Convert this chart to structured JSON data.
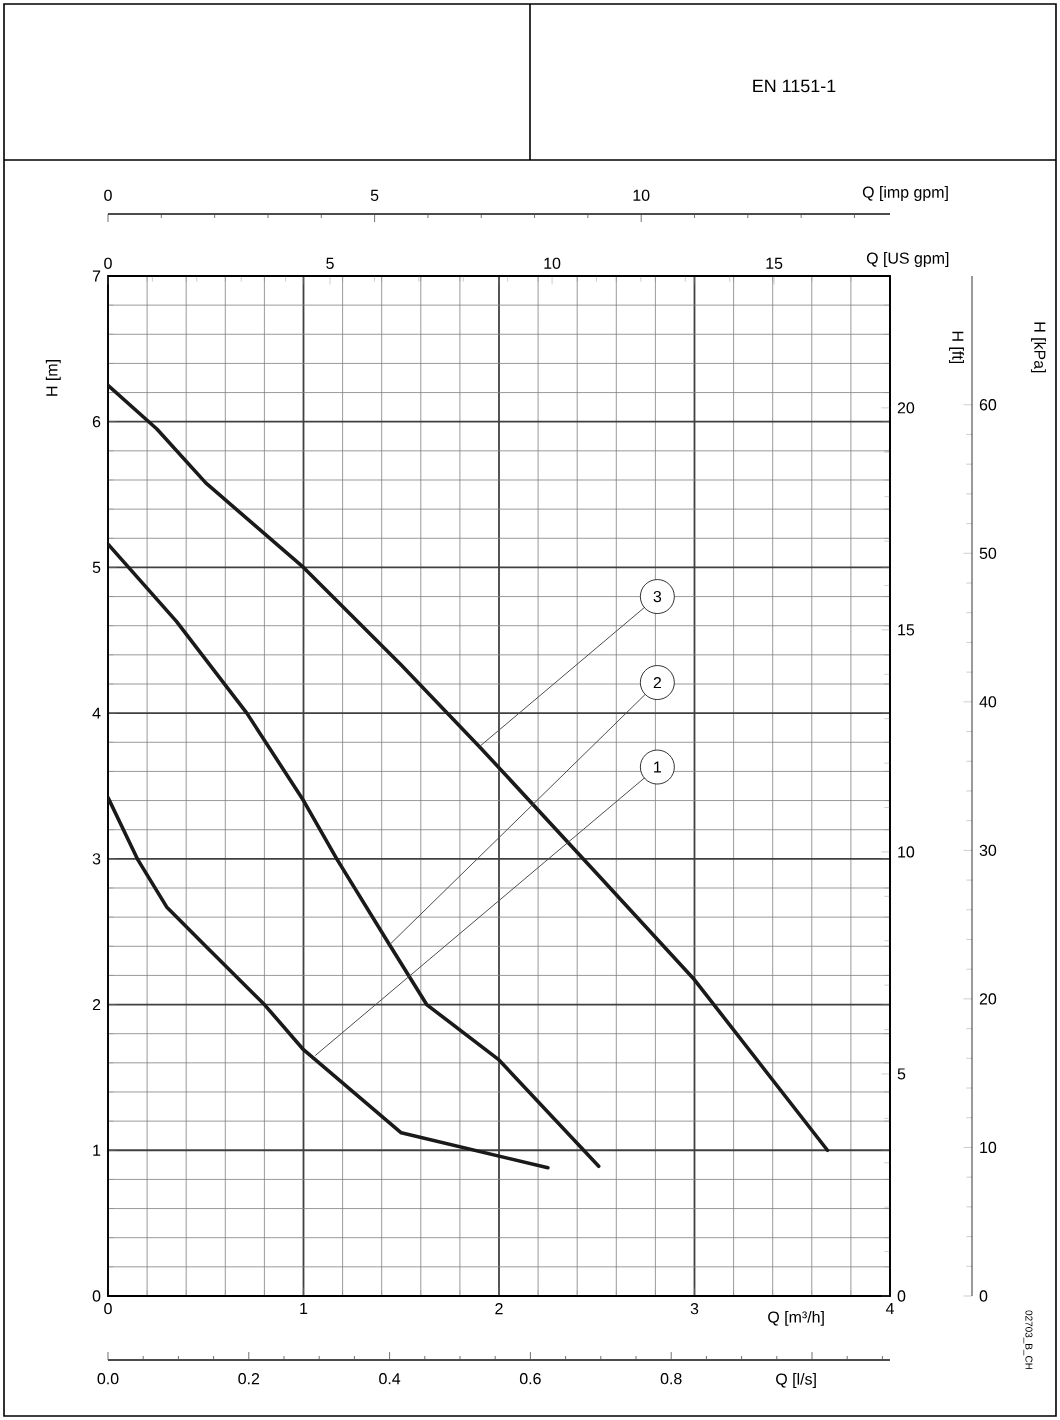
{
  "chart_data": {
    "type": "line",
    "xlabel": "Q [m³/h]",
    "ylabel": "H [m]",
    "y2label": "H [ft]",
    "y3label": "H [kPa]",
    "x2label": "Q [US gpm]",
    "xlim": [
      0,
      4
    ],
    "xticks": [
      0,
      1,
      2,
      3,
      4
    ],
    "ylim": [
      0,
      7
    ],
    "yticks": [
      0,
      1,
      2,
      3,
      4,
      5,
      6,
      7
    ],
    "y2lim": [
      0,
      22.97
    ],
    "y2ticks": [
      0,
      5,
      10,
      15,
      20
    ],
    "y3lim": [
      0,
      68.67
    ],
    "y3ticks": [
      0,
      10,
      20,
      30,
      40,
      50,
      60
    ],
    "x2lim": [
      0,
      17.61
    ],
    "x2ticks": [
      0,
      5,
      10,
      15
    ],
    "grid": true,
    "series": [
      {
        "color": "#1a1a1a",
        "x": [
          0,
          0.15,
          0.3,
          0.5,
          0.8,
          1.0,
          1.5,
          2.25
        ],
        "values": [
          3.42,
          3.0,
          2.67,
          2.4,
          2.0,
          1.69,
          1.12,
          0.88
        ]
      },
      {
        "color": "#1a1a1a",
        "x": [
          0,
          0.35,
          0.71,
          1.0,
          1.17,
          1.44,
          1.63,
          2.0,
          2.51
        ],
        "values": [
          5.16,
          4.63,
          4.0,
          3.4,
          3.0,
          2.41,
          2.0,
          1.62,
          0.89
        ]
      },
      {
        "color": "#1a1a1a",
        "x": [
          0,
          0.25,
          0.5,
          1.0,
          1.5,
          1.9,
          2.5,
          3.0,
          3.68
        ],
        "values": [
          6.25,
          5.95,
          5.58,
          5.0,
          4.33,
          3.77,
          2.9,
          2.17,
          1.0
        ]
      }
    ],
    "annotations": [
      "EN 1151-1",
      "02703_B_CH",
      "Q [imp gpm]",
      "0",
      "5",
      "10",
      "Q [l/s]",
      "0.0",
      "0.2",
      "0.4",
      "0.6",
      "0.8",
      {
        "text": "1",
        "x": 1.06,
        "y": 1.65
      },
      {
        "text": "2",
        "x": 1.44,
        "y": 2.41
      },
      {
        "text": "3",
        "x": 1.9,
        "y": 3.77
      }
    ]
  }
}
